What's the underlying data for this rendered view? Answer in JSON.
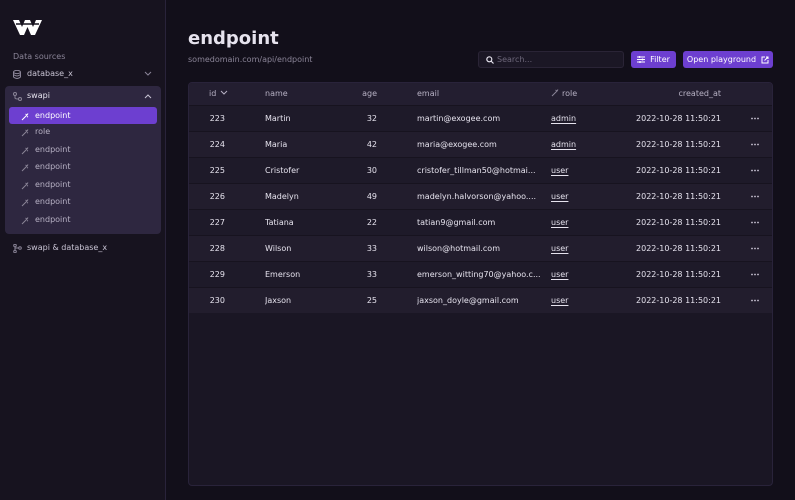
{
  "sidebar": {
    "section_label": "Data sources",
    "sources": [
      {
        "name": "database_x"
      },
      {
        "name": "swapi",
        "items": [
          "endpoint",
          "role",
          "endpoint",
          "endpoint",
          "endpoint",
          "endpoint",
          "endpoint"
        ]
      },
      {
        "name": "swapi & database_x"
      }
    ]
  },
  "header": {
    "title": "endpoint",
    "path": "somedomain.com/api/endpoint"
  },
  "toolbar": {
    "search_placeholder": "Search...",
    "filter": "Filter",
    "playground": "Open playground"
  },
  "table": {
    "columns": [
      "id",
      "name",
      "age",
      "email",
      "role",
      "created_at"
    ],
    "rows": [
      [
        223,
        "Martin",
        32,
        "martin@exogee.com",
        "admin",
        "2022-10-28 11:50:21"
      ],
      [
        224,
        "Maria",
        42,
        "maria@exogee.com",
        "admin",
        "2022-10-28 11:50:21"
      ],
      [
        225,
        "Cristofer",
        30,
        "cristofer_tillman50@hotmai...",
        "user",
        "2022-10-28 11:50:21"
      ],
      [
        226,
        "Madelyn",
        49,
        "madelyn.halvorson@yahoo....",
        "user",
        "2022-10-28 11:50:21"
      ],
      [
        227,
        "Tatiana",
        22,
        "tatian9@gmail.com",
        "user",
        "2022-10-28 11:50:21"
      ],
      [
        228,
        "Wilson",
        33,
        "wilson@hotmail.com",
        "user",
        "2022-10-28 11:50:21"
      ],
      [
        229,
        "Emerson",
        33,
        "emerson_witting70@yahoo.c...",
        "user",
        "2022-10-28 11:50:21"
      ],
      [
        230,
        "Jaxson",
        25,
        "jaxson_doyle@gmail.com",
        "user",
        "2022-10-28 11:50:21"
      ]
    ]
  }
}
